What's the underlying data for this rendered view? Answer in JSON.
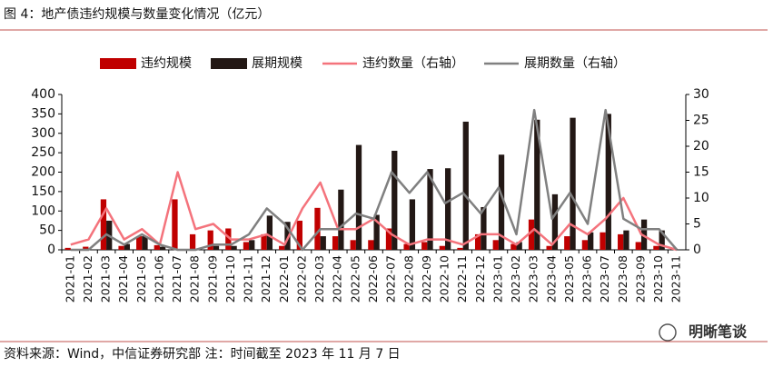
{
  "chart_data": {
    "type": "bar",
    "title": "图 4：地产债违约规模与数量变化情况（亿元）",
    "source": "资料来源：Wind，中信证券研究部 注：时间截至 2023 年 11 月 7 日",
    "watermark": "明晰笔谈",
    "categories": [
      "2021-01",
      "2021-02",
      "2021-03",
      "2021-04",
      "2021-05",
      "2021-06",
      "2021-07",
      "2021-08",
      "2021-09",
      "2021-10",
      "2021-11",
      "2021-12",
      "2022-01",
      "2022-02",
      "2022-03",
      "2022-04",
      "2022-05",
      "2022-06",
      "2022-07",
      "2022-08",
      "2022-09",
      "2022-10",
      "2022-11",
      "2022-12",
      "2023-01",
      "2023-02",
      "2023-03",
      "2023-04",
      "2023-05",
      "2023-06",
      "2023-07",
      "2023-08",
      "2023-09",
      "2023-10",
      "2023-11"
    ],
    "series": [
      {
        "name": "违约规模",
        "type": "bar",
        "color": "#c00000",
        "values": [
          5,
          8,
          130,
          10,
          35,
          12,
          130,
          40,
          50,
          55,
          20,
          40,
          10,
          75,
          108,
          35,
          25,
          25,
          55,
          15,
          20,
          10,
          5,
          40,
          25,
          15,
          78,
          10,
          35,
          25,
          45,
          40,
          20,
          10,
          5
        ]
      },
      {
        "name": "展期规模",
        "type": "bar",
        "color": "#231815",
        "values": [
          0,
          0,
          75,
          15,
          35,
          8,
          0,
          0,
          10,
          10,
          25,
          88,
          72,
          0,
          35,
          155,
          270,
          90,
          255,
          130,
          208,
          210,
          330,
          110,
          245,
          20,
          335,
          143,
          340,
          45,
          350,
          50,
          78,
          50,
          0
        ]
      },
      {
        "name": "违约数量（右轴）",
        "type": "line",
        "axis": "y2",
        "color": "#f4737c",
        "values": [
          1,
          2,
          8,
          2,
          4,
          1,
          15,
          4,
          5,
          2,
          2,
          3,
          1,
          8,
          13,
          4,
          4,
          6,
          3,
          1,
          2,
          2,
          1,
          3,
          3,
          1,
          4,
          1,
          5,
          3,
          6,
          10,
          3,
          1,
          0
        ]
      },
      {
        "name": "展期数量（右轴）",
        "type": "line",
        "axis": "y2",
        "color": "#808080",
        "values": [
          0,
          0,
          3,
          1,
          3,
          1,
          0,
          0,
          1,
          1,
          3,
          8,
          5,
          0,
          4,
          4,
          7,
          6,
          15,
          11,
          15,
          9,
          11,
          7,
          12,
          3,
          27,
          6,
          11,
          5,
          27,
          6,
          4,
          4,
          0
        ]
      }
    ],
    "ylim": [
      0,
      400
    ],
    "yticks": [
      0,
      50,
      100,
      150,
      200,
      250,
      300,
      350,
      400
    ],
    "y2lim": [
      0,
      30
    ],
    "y2ticks": [
      0,
      5,
      10,
      15,
      20,
      25,
      30
    ],
    "grid": false,
    "legend": "top"
  }
}
